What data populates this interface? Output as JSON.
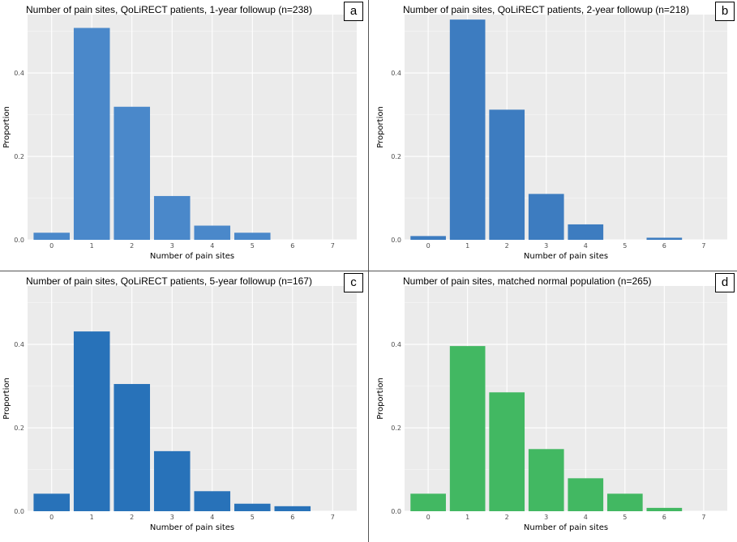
{
  "colors": {
    "blue_a": "#4a88ca",
    "blue_b": "#3d7cc0",
    "blue_c": "#2872b9",
    "green_d": "#42b862",
    "panel_bg": "#ebebeb",
    "grid": "#ffffff"
  },
  "chart_data": [
    {
      "type": "bar",
      "title": "Number of pain sites, QoLiRECT patients, 1-year followup (n=238)",
      "panel_label": "a",
      "xlabel": "Number of pain sites",
      "ylabel": "Proportion",
      "categories": [
        "0",
        "1",
        "2",
        "3",
        "4",
        "5",
        "6",
        "7"
      ],
      "values": [
        0.017,
        0.508,
        0.319,
        0.105,
        0.034,
        0.017,
        0,
        0
      ],
      "yticks": [
        "0.0",
        "0.2",
        "0.4"
      ],
      "ylim": [
        0,
        0.54
      ],
      "grid": true,
      "color": "#4a88ca"
    },
    {
      "type": "bar",
      "title": "Number of pain sites, QoLiRECT patients, 2-year followup (n=218)",
      "panel_label": "b",
      "xlabel": "Number of pain sites",
      "ylabel": "Proportion",
      "categories": [
        "0",
        "1",
        "2",
        "3",
        "4",
        "5",
        "6",
        "7"
      ],
      "values": [
        0.009,
        0.528,
        0.312,
        0.11,
        0.037,
        0,
        0.005,
        0
      ],
      "yticks": [
        "0.0",
        "0.2",
        "0.4"
      ],
      "ylim": [
        0,
        0.54
      ],
      "grid": true,
      "color": "#3d7cc0"
    },
    {
      "type": "bar",
      "title": "Number of pain sites, QoLiRECT patients, 5-year followup (n=167)",
      "panel_label": "c",
      "xlabel": "Number of pain sites",
      "ylabel": "Proportion",
      "categories": [
        "0",
        "1",
        "2",
        "3",
        "4",
        "5",
        "6",
        "7"
      ],
      "values": [
        0.042,
        0.431,
        0.305,
        0.144,
        0.048,
        0.018,
        0.012,
        0
      ],
      "yticks": [
        "0.0",
        "0.2",
        "0.4"
      ],
      "ylim": [
        0,
        0.54
      ],
      "grid": true,
      "color": "#2872b9"
    },
    {
      "type": "bar",
      "title": "Number of pain sites, matched normal population (n=265)",
      "panel_label": "d",
      "xlabel": "Number of pain sites",
      "ylabel": "Proportion",
      "categories": [
        "0",
        "1",
        "2",
        "3",
        "4",
        "5",
        "6",
        "7"
      ],
      "values": [
        0.042,
        0.396,
        0.285,
        0.149,
        0.079,
        0.042,
        0.008,
        0
      ],
      "yticks": [
        "0.0",
        "0.2",
        "0.4"
      ],
      "ylim": [
        0,
        0.54
      ],
      "grid": true,
      "color": "#42b862"
    }
  ]
}
